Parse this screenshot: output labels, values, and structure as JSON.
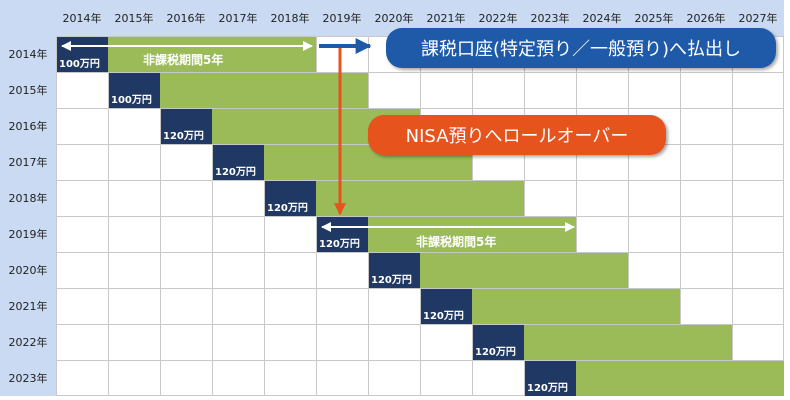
{
  "columns": [
    "2014年",
    "2015年",
    "2016年",
    "2017年",
    "2018年",
    "2019年",
    "2020年",
    "2021年",
    "2022年",
    "2023年",
    "2024年",
    "2025年",
    "2026年",
    "2027年"
  ],
  "rows": [
    {
      "year": "2014年",
      "amount": "100万円"
    },
    {
      "year": "2015年",
      "amount": "100万円"
    },
    {
      "year": "2016年",
      "amount": "120万円"
    },
    {
      "year": "2017年",
      "amount": "120万円"
    },
    {
      "year": "2018年",
      "amount": "120万円"
    },
    {
      "year": "2019年",
      "amount": "120万円"
    },
    {
      "year": "2020年",
      "amount": "120万円"
    },
    {
      "year": "2021年",
      "amount": "120万円"
    },
    {
      "year": "2022年",
      "amount": "120万円"
    },
    {
      "year": "2023年",
      "amount": "120万円"
    }
  ],
  "period_label_1": "非課税期間5年",
  "period_label_2": "非課税期間5年",
  "callout_payout": "課税口座(特定預り／一般預り)へ払出し",
  "callout_rollover": "NISA預りへロールオーバー",
  "colors": {
    "header_bg": "#c9daf2",
    "tax_free_period": "#9bbb59",
    "investment_year": "#1f3864",
    "payout_callout": "#1e5aa8",
    "rollover_callout": "#e6531d"
  }
}
